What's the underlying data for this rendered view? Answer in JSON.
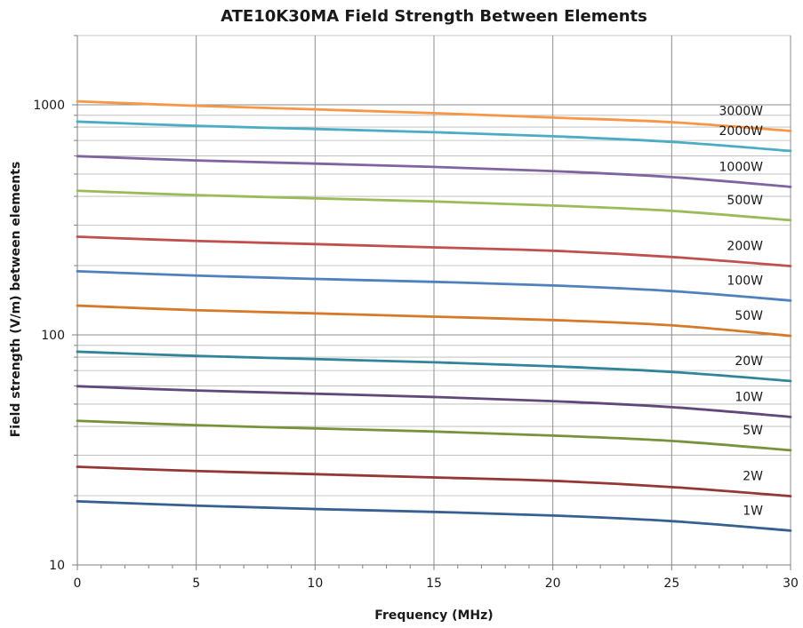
{
  "chart_data": {
    "type": "line",
    "title": "ATE10K30MA  Field Strength Between Elements",
    "xlabel": "Frequency (MHz)",
    "ylabel": "Field  strength (V/m) between elements",
    "xlim": [
      0,
      30
    ],
    "ylim": [
      10,
      2000
    ],
    "y_scale": "log",
    "x_ticks": [
      0,
      5,
      10,
      15,
      20,
      25,
      30
    ],
    "y_ticks": [
      10,
      100,
      1000
    ],
    "grid": true,
    "x": [
      0,
      5,
      10,
      15,
      20,
      25,
      30
    ],
    "series": [
      {
        "name": "3000W",
        "color": "#f79646",
        "values": [
          1035,
          990,
          955,
          920,
          880,
          840,
          770
        ]
      },
      {
        "name": "2000W",
        "color": "#4bacc6",
        "values": [
          845,
          810,
          785,
          760,
          730,
          690,
          630
        ]
      },
      {
        "name": "1000W",
        "color": "#8064a2",
        "values": [
          598,
          573,
          555,
          537,
          515,
          485,
          440
        ]
      },
      {
        "name": "500W",
        "color": "#9bbb59",
        "values": [
          423,
          405,
          392,
          380,
          365,
          346,
          315
        ]
      },
      {
        "name": "200W",
        "color": "#c0504d",
        "values": [
          267,
          256,
          248,
          240,
          232,
          218,
          199
        ]
      },
      {
        "name": "100W",
        "color": "#4f81bd",
        "values": [
          189,
          181,
          175,
          170,
          164,
          155,
          141
        ]
      },
      {
        "name": "50W",
        "color": "#d7792a",
        "values": [
          134,
          128,
          124,
          120,
          116,
          110,
          99
        ]
      },
      {
        "name": "20W",
        "color": "#31849b",
        "values": [
          84.5,
          81,
          78.5,
          76,
          73,
          69,
          63
        ]
      },
      {
        "name": "10W",
        "color": "#60497a",
        "values": [
          59.8,
          57.3,
          55.5,
          53.7,
          51.5,
          48.5,
          44
        ]
      },
      {
        "name": "5W",
        "color": "#77933c",
        "values": [
          42.3,
          40.5,
          39.2,
          38,
          36.5,
          34.6,
          31.5
        ]
      },
      {
        "name": "2W",
        "color": "#953735",
        "values": [
          26.7,
          25.6,
          24.8,
          24,
          23.2,
          21.8,
          19.9
        ]
      },
      {
        "name": "1W",
        "color": "#376092",
        "values": [
          18.9,
          18.1,
          17.5,
          17,
          16.4,
          15.5,
          14.1
        ]
      }
    ]
  }
}
